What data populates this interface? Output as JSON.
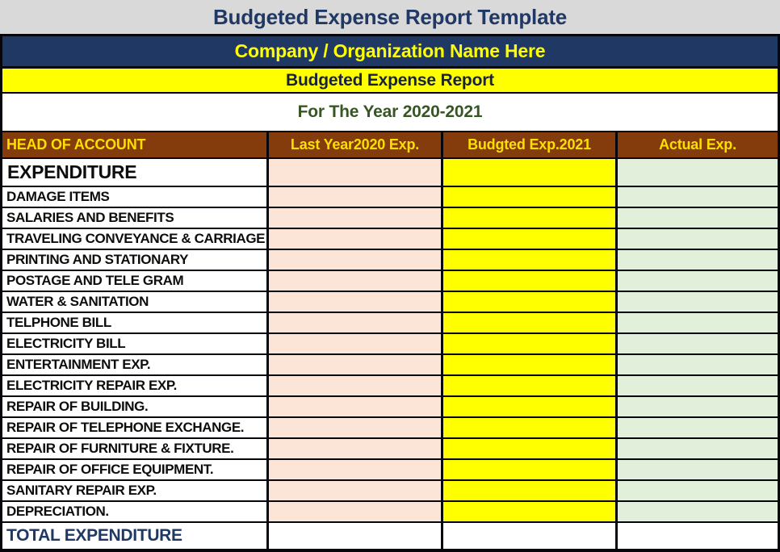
{
  "page": {
    "title": "Budgeted Expense Report Template",
    "company": "Company / Organization Name Here",
    "report_title": "Budgeted Expense Report",
    "year_title": "For The Year 2020-2021"
  },
  "table": {
    "headers": [
      "HEAD OF ACCOUNT",
      "Last Year2020 Exp.",
      "Budgted Exp.2021",
      "Actual Exp."
    ],
    "section_label": "EXPENDITURE",
    "section_values": {
      "last_year": "",
      "budgeted": "",
      "actual": ""
    },
    "rows": [
      {
        "label": "DAMAGE ITEMS",
        "last_year": "",
        "budgeted": "",
        "actual": ""
      },
      {
        "label": "SALARIES AND BENEFITS",
        "last_year": "",
        "budgeted": "",
        "actual": ""
      },
      {
        "label": "TRAVELING CONVEYANCE & CARRIAGE",
        "last_year": "",
        "budgeted": "",
        "actual": ""
      },
      {
        "label": "PRINTING AND STATIONARY",
        "last_year": "",
        "budgeted": "",
        "actual": ""
      },
      {
        "label": "POSTAGE AND TELE GRAM",
        "last_year": "",
        "budgeted": "",
        "actual": ""
      },
      {
        "label": "WATER & SANITATION",
        "last_year": "",
        "budgeted": "",
        "actual": ""
      },
      {
        "label": "TELPHONE BILL",
        "last_year": "",
        "budgeted": "",
        "actual": ""
      },
      {
        "label": "ELECTRICITY BILL",
        "last_year": "",
        "budgeted": "",
        "actual": ""
      },
      {
        "label": "ENTERTAINMENT EXP.",
        "last_year": "",
        "budgeted": "",
        "actual": ""
      },
      {
        "label": "ELECTRICITY REPAIR EXP.",
        "last_year": "",
        "budgeted": "",
        "actual": ""
      },
      {
        "label": "REPAIR OF BUILDING.",
        "last_year": "",
        "budgeted": "",
        "actual": ""
      },
      {
        "label": "REPAIR OF TELEPHONE EXCHANGE.",
        "last_year": "",
        "budgeted": "",
        "actual": ""
      },
      {
        "label": "REPAIR OF FURNITURE & FIXTURE.",
        "last_year": "",
        "budgeted": "",
        "actual": ""
      },
      {
        "label": "REPAIR OF OFFICE EQUIPMENT.",
        "last_year": "",
        "budgeted": "",
        "actual": ""
      },
      {
        "label": "SANITARY REPAIR EXP.",
        "last_year": "",
        "budgeted": "",
        "actual": ""
      },
      {
        "label": "DEPRECIATION.",
        "last_year": "",
        "budgeted": "",
        "actual": ""
      }
    ],
    "total_label": "TOTAL EXPENDITURE",
    "total_values": {
      "last_year": "",
      "budgeted": "",
      "actual": ""
    }
  },
  "colors": {
    "banner_gray": "#D9D9D9",
    "navy": "#1F3864",
    "bright_yellow": "#FFFF00",
    "header_brown": "#843C0C",
    "header_text_yellow": "#FFDF00",
    "year_title_green": "#375623",
    "last_year_col_bg": "#FCE4D6",
    "budgeted_col_bg": "#FFFF00",
    "actual_col_bg": "#E2EFDA",
    "total_text_navy": "#1F3864"
  }
}
